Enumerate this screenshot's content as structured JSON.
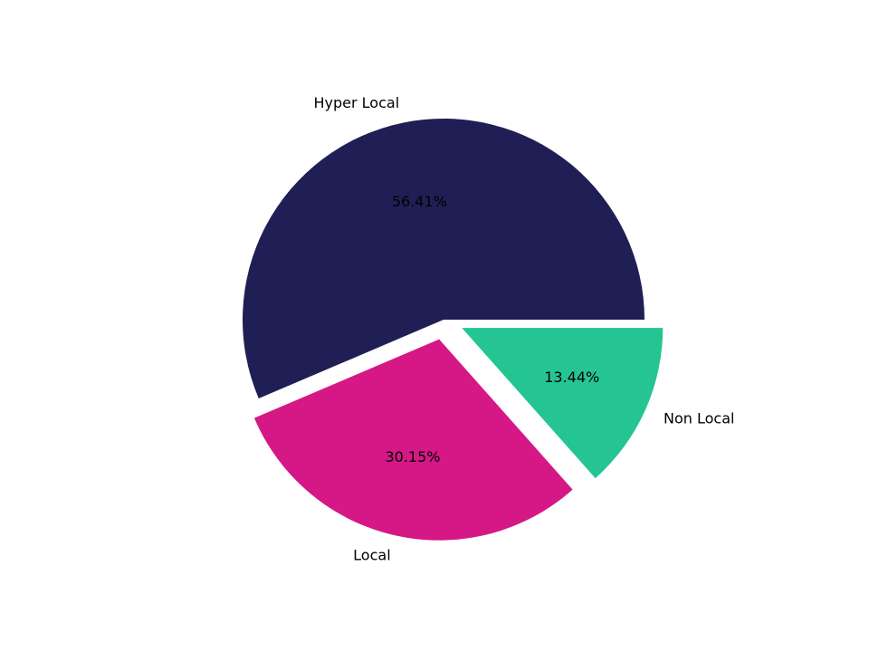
{
  "chart_data": {
    "type": "pie",
    "title": "",
    "slices": [
      {
        "label": "Hyper Local",
        "value": 56.41,
        "pct_label": "56.41%",
        "color": "#1f1f55",
        "exploded": false
      },
      {
        "label": "Local",
        "value": 30.15,
        "pct_label": "30.15%",
        "color": "#d51886",
        "exploded": true
      },
      {
        "label": "Non Local",
        "value": 13.44,
        "pct_label": "13.44%",
        "color": "#24c592",
        "exploded": true
      }
    ],
    "start_angle_deg": 0,
    "direction": "counterclockwise",
    "legend": "none"
  }
}
